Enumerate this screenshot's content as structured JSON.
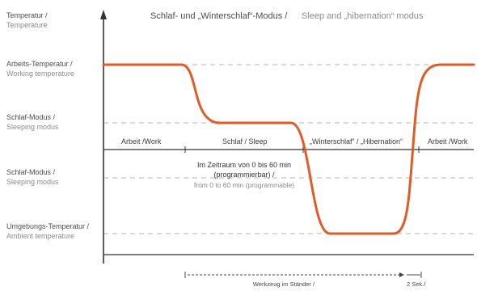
{
  "title": {
    "de": "Schlaf- und „Winterschlaf“-Modus /",
    "en": "Sleep and „hibernation“ modus"
  },
  "y_axis": {
    "label_de": "Temperatur /",
    "label_en": "Temperature"
  },
  "levels": [
    {
      "id": "working",
      "de": "Arbeits-Temperatur /",
      "en": "Working temperature"
    },
    {
      "id": "sleeping",
      "de": "Schlaf-Modus /",
      "en": "Sleeping modus"
    },
    {
      "id": "sleeping2",
      "de": "Schlaf-Modus /",
      "en": "Sleeping modus"
    },
    {
      "id": "ambient",
      "de": "Umgebungs-Temperatur /",
      "en": "Ambient temperature"
    }
  ],
  "phases": [
    "Arbeit /Work",
    "Schlaf / Sleep",
    "„Winterschlaf“ / „Hibernation“",
    "Arbeit /Work"
  ],
  "annotation": {
    "line1": "Im Zeitraum von 0 bis 60 min",
    "line2": "(programmierbar) /",
    "line3": "from 0 to 60 min (programmable)"
  },
  "bottom": {
    "tool_label": "Werkzeug im Ständer /",
    "seconds_label": "2 Sek./"
  },
  "colors": {
    "curve": "#e25b26",
    "axis": "#333333",
    "dashed": "#b5b5b5"
  }
}
